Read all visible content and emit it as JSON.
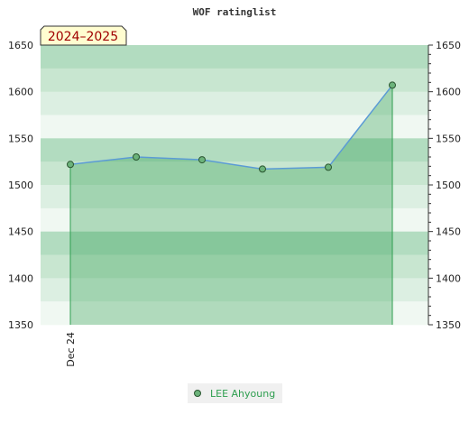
{
  "chart_data": {
    "type": "area",
    "title": "WOF ratinglist",
    "badge": "2024–2025",
    "x_tick_labels": [
      "Dec 24"
    ],
    "y_ticks": [
      1350,
      1400,
      1450,
      1500,
      1550,
      1600,
      1650
    ],
    "ylim": [
      1350,
      1650
    ],
    "grid": false,
    "legend_position": "bottom-center",
    "series": [
      {
        "name": "LEE Ahyoung",
        "color": "#2e9e4f",
        "values": [
          1522,
          1530,
          1527,
          1517,
          1519,
          1607
        ]
      }
    ]
  }
}
